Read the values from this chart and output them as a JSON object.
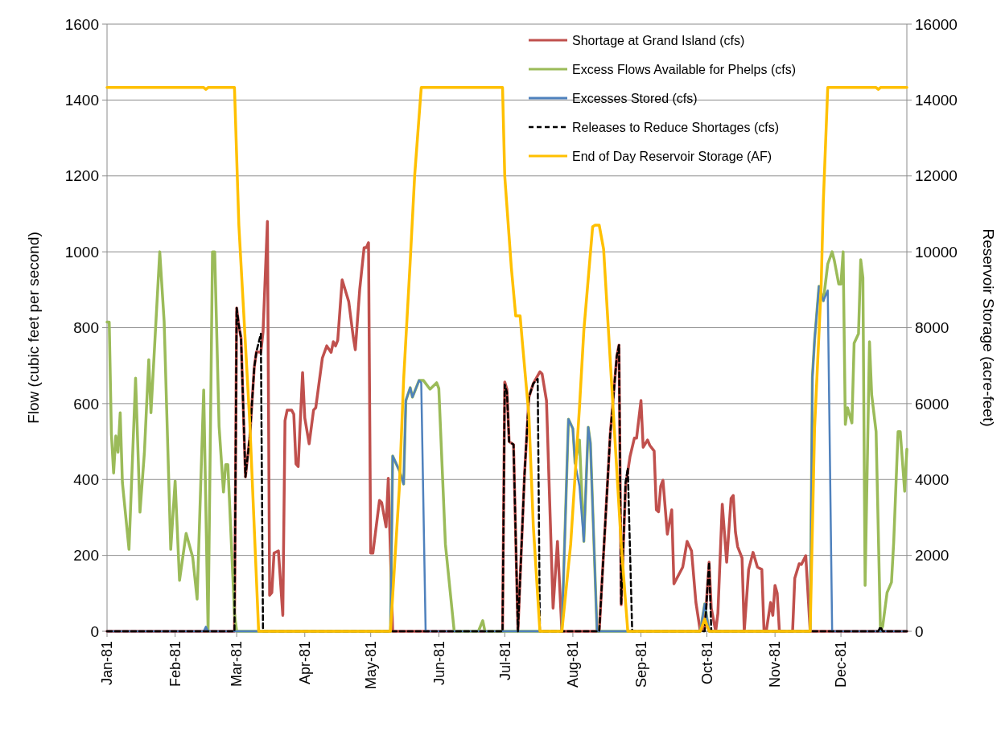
{
  "chart_data": {
    "type": "line",
    "ylabel": "Flow (cubic feet per second)",
    "y2label": "Reservoir Storage (acre-feet)",
    "xlim": [
      "1981-01-01",
      "1981-12-31"
    ],
    "xticks": [
      {
        "value": "1981-01-01",
        "label": "Jan-81"
      },
      {
        "value": "1981-02-01",
        "label": "Feb-81"
      },
      {
        "value": "1981-03-01",
        "label": "Mar-81"
      },
      {
        "value": "1981-04-01",
        "label": "Apr-81"
      },
      {
        "value": "1981-05-01",
        "label": "May-81"
      },
      {
        "value": "1981-06-01",
        "label": "Jun-81"
      },
      {
        "value": "1981-07-01",
        "label": "Jul-81"
      },
      {
        "value": "1981-08-01",
        "label": "Aug-81"
      },
      {
        "value": "1981-09-01",
        "label": "Sep-81"
      },
      {
        "value": "1981-10-01",
        "label": "Oct-81"
      },
      {
        "value": "1981-11-01",
        "label": "Nov-81"
      },
      {
        "value": "1981-12-01",
        "label": "Dec-81"
      }
    ],
    "ylim": [
      0,
      1600
    ],
    "yticks": [
      0,
      200,
      400,
      600,
      800,
      1000,
      1200,
      1400,
      1600
    ],
    "y2lim": [
      0,
      16000
    ],
    "y2ticks": [
      0,
      2000,
      4000,
      6000,
      8000,
      10000,
      12000,
      14000,
      16000
    ],
    "grid": "y",
    "legend": "top right",
    "series": [
      {
        "name": "Shortage at Grand Island (cfs)",
        "color": "#c0504d",
        "x": [
          "1981-01-01",
          "1981-02-28",
          "1981-03-01",
          "1981-03-02",
          "1981-03-03",
          "1981-03-05",
          "1981-03-07",
          "1981-03-09",
          "1981-03-10",
          "1981-03-12",
          "1981-03-13",
          "1981-03-15",
          "1981-03-16",
          "1981-03-17",
          "1981-03-18",
          "1981-03-20",
          "1981-03-22",
          "1981-03-23",
          "1981-03-24",
          "1981-03-26",
          "1981-03-27",
          "1981-03-28",
          "1981-03-29",
          "1981-03-31",
          "1981-04-01",
          "1981-04-03",
          "1981-04-05",
          "1981-04-06",
          "1981-04-09",
          "1981-04-11",
          "1981-04-13",
          "1981-04-14",
          "1981-04-15",
          "1981-04-16",
          "1981-04-18",
          "1981-04-21",
          "1981-04-23",
          "1981-04-24",
          "1981-04-26",
          "1981-04-28",
          "1981-04-29",
          "1981-04-30",
          "1981-05-01",
          "1981-05-02",
          "1981-05-05",
          "1981-05-06",
          "1981-05-08",
          "1981-05-09",
          "1981-05-11",
          "1981-06-30",
          "1981-07-01",
          "1981-07-02",
          "1981-07-03",
          "1981-07-05",
          "1981-07-07",
          "1981-07-10",
          "1981-07-12",
          "1981-07-14",
          "1981-07-17",
          "1981-07-18",
          "1981-07-20",
          "1981-07-21",
          "1981-07-23",
          "1981-07-25",
          "1981-07-27",
          "1981-08-13",
          "1981-08-18",
          "1981-08-21",
          "1981-08-22",
          "1981-08-23",
          "1981-08-25",
          "1981-08-27",
          "1981-08-29",
          "1981-08-30",
          "1981-09-01",
          "1981-09-02",
          "1981-09-04",
          "1981-09-05",
          "1981-09-07",
          "1981-09-08",
          "1981-09-09",
          "1981-09-10",
          "1981-09-11",
          "1981-09-13",
          "1981-09-15",
          "1981-09-16",
          "1981-09-20",
          "1981-09-22",
          "1981-09-24",
          "1981-09-26",
          "1981-09-28",
          "1981-09-30",
          "1981-10-02",
          "1981-10-03",
          "1981-10-05",
          "1981-10-06",
          "1981-10-08",
          "1981-10-10",
          "1981-10-12",
          "1981-10-13",
          "1981-10-14",
          "1981-10-15",
          "1981-10-17",
          "1981-10-18",
          "1981-10-20",
          "1981-10-22",
          "1981-10-24",
          "1981-10-26",
          "1981-10-27",
          "1981-10-28",
          "1981-10-30",
          "1981-10-31",
          "1981-11-01",
          "1981-11-02",
          "1981-11-03",
          "1981-11-09",
          "1981-11-10",
          "1981-11-12",
          "1981-11-13",
          "1981-11-15",
          "1981-11-17",
          "1981-12-31"
        ],
        "values": [
          0,
          0,
          852,
          805,
          773,
          407,
          513,
          695,
          737,
          735,
          788,
          1080,
          95,
          102,
          206,
          212,
          42,
          555,
          583,
          583,
          572,
          441,
          434,
          682,
          562,
          494,
          583,
          589,
          720,
          752,
          735,
          763,
          752,
          767,
          926,
          869,
          778,
          742,
          901,
          1011,
          1011,
          1024,
          206,
          206,
          345,
          339,
          275,
          403,
          0,
          0,
          657,
          638,
          500,
          492,
          0,
          413,
          617,
          653,
          684,
          678,
          608,
          424,
          61,
          237,
          0,
          0,
          519,
          725,
          754,
          70,
          383,
          460,
          509,
          509,
          608,
          485,
          504,
          490,
          475,
          320,
          315,
          383,
          398,
          256,
          320,
          125,
          169,
          237,
          212,
          76,
          0,
          10,
          182,
          61,
          0,
          47,
          335,
          182,
          350,
          358,
          261,
          223,
          193,
          0,
          163,
          208,
          169,
          163,
          0,
          0,
          76,
          42,
          121,
          100,
          0,
          0,
          140,
          178,
          176,
          199,
          0,
          0
        ]
      },
      {
        "name": "Excess Flows  Available for Phelps (cfs)",
        "color": "#9bbb59",
        "x": [
          "1981-01-01",
          "1981-01-02",
          "1981-01-03",
          "1981-01-04",
          "1981-01-05",
          "1981-01-06",
          "1981-01-07",
          "1981-01-08",
          "1981-01-11",
          "1981-01-14",
          "1981-01-16",
          "1981-01-18",
          "1981-01-20",
          "1981-01-21",
          "1981-01-25",
          "1981-01-27",
          "1981-01-30",
          "1981-02-01",
          "1981-02-03",
          "1981-02-06",
          "1981-02-09",
          "1981-02-11",
          "1981-02-14",
          "1981-02-16",
          "1981-02-18",
          "1981-02-19",
          "1981-02-21",
          "1981-02-23",
          "1981-02-24",
          "1981-02-25",
          "1981-02-28",
          "1981-03-01",
          "1981-05-10",
          "1981-05-11",
          "1981-05-14",
          "1981-05-16",
          "1981-05-17",
          "1981-05-19",
          "1981-05-20",
          "1981-05-23",
          "1981-05-25",
          "1981-05-28",
          "1981-05-31",
          "1981-06-01",
          "1981-06-04",
          "1981-06-08",
          "1981-06-19",
          "1981-06-21",
          "1981-06-22",
          "1981-07-27",
          "1981-07-30",
          "1981-08-01",
          "1981-08-02",
          "1981-08-04",
          "1981-08-06",
          "1981-08-08",
          "1981-08-09",
          "1981-08-12",
          "1981-09-28",
          "1981-09-30",
          "1981-10-02",
          "1981-11-17",
          "1981-11-18",
          "1981-11-19",
          "1981-11-21",
          "1981-11-23",
          "1981-11-25",
          "1981-11-27",
          "1981-11-28",
          "1981-11-30",
          "1981-12-01",
          "1981-12-02",
          "1981-12-03",
          "1981-12-04",
          "1981-12-06",
          "1981-12-07",
          "1981-12-09",
          "1981-12-10",
          "1981-12-11",
          "1981-12-12",
          "1981-12-14",
          "1981-12-15",
          "1981-12-17",
          "1981-12-19",
          "1981-12-20",
          "1981-12-22",
          "1981-12-24",
          "1981-12-25",
          "1981-12-27",
          "1981-12-28",
          "1981-12-30",
          "1981-12-31"
        ],
        "values": [
          815,
          815,
          519,
          417,
          515,
          472,
          576,
          392,
          216,
          667,
          314,
          470,
          716,
          576,
          1000,
          816,
          216,
          396,
          134,
          258,
          195,
          85,
          636,
          0,
          1000,
          1000,
          540,
          367,
          439,
          439,
          47,
          0,
          0,
          462,
          424,
          388,
          608,
          642,
          617,
          661,
          661,
          638,
          655,
          640,
          229,
          0,
          0,
          28,
          0,
          0,
          559,
          534,
          443,
          504,
          237,
          538,
          496,
          0,
          0,
          72,
          0,
          0,
          670,
          767,
          909,
          871,
          968,
          1000,
          977,
          915,
          915,
          1000,
          545,
          589,
          549,
          759,
          784,
          979,
          932,
          121,
          763,
          623,
          526,
          0,
          13,
          102,
          129,
          233,
          526,
          526,
          369,
          480
        ]
      },
      {
        "name": "Excesses Stored (cfs)",
        "color": "#4f81bd",
        "x": [
          "1981-01-01",
          "1981-02-14",
          "1981-02-15",
          "1981-02-16",
          "1981-05-10",
          "1981-05-11",
          "1981-05-14",
          "1981-05-16",
          "1981-05-17",
          "1981-05-19",
          "1981-05-20",
          "1981-05-23",
          "1981-05-24",
          "1981-05-26",
          "1981-07-27",
          "1981-07-30",
          "1981-08-01",
          "1981-08-02",
          "1981-08-04",
          "1981-08-06",
          "1981-08-08",
          "1981-08-09",
          "1981-08-12",
          "1981-09-28",
          "1981-09-30",
          "1981-10-02",
          "1981-11-17",
          "1981-11-18",
          "1981-11-19",
          "1981-11-21",
          "1981-11-23",
          "1981-11-25",
          "1981-11-27",
          "1981-12-31"
        ],
        "values": [
          0,
          0,
          12,
          0,
          0,
          462,
          424,
          388,
          608,
          642,
          617,
          661,
          655,
          0,
          0,
          559,
          534,
          443,
          383,
          237,
          538,
          496,
          0,
          0,
          72,
          0,
          0,
          670,
          767,
          909,
          871,
          898,
          0,
          0
        ]
      },
      {
        "name": "Releases to Reduce Shortages (cfs)",
        "color": "#000000",
        "line_style": "dashed",
        "x": [
          "1981-01-01",
          "1981-02-28",
          "1981-03-01",
          "1981-03-02",
          "1981-03-03",
          "1981-03-05",
          "1981-03-07",
          "1981-03-09",
          "1981-03-10",
          "1981-03-12",
          "1981-03-13",
          "1981-06-30",
          "1981-07-01",
          "1981-07-02",
          "1981-07-03",
          "1981-07-05",
          "1981-07-07",
          "1981-07-10",
          "1981-07-12",
          "1981-07-14",
          "1981-07-16",
          "1981-07-17",
          "1981-08-13",
          "1981-08-18",
          "1981-08-21",
          "1981-08-22",
          "1981-08-23",
          "1981-08-25",
          "1981-08-26",
          "1981-08-28",
          "1981-09-30",
          "1981-10-02",
          "1981-10-03",
          "1981-12-18",
          "1981-12-19",
          "1981-12-20",
          "1981-12-31"
        ],
        "values": [
          0,
          0,
          852,
          805,
          773,
          407,
          513,
          695,
          737,
          784,
          0,
          0,
          650,
          630,
          500,
          492,
          0,
          413,
          617,
          653,
          665,
          0,
          0,
          519,
          725,
          754,
          70,
          392,
          430,
          0,
          0,
          182,
          0,
          0,
          12,
          0,
          0
        ]
      },
      {
        "name": "End of Day Reservoir Storage (AF)",
        "color": "#ffc000",
        "axis": "y2",
        "x": [
          "1981-01-01",
          "1981-02-14",
          "1981-02-15",
          "1981-02-16",
          "1981-02-28",
          "1981-03-02",
          "1981-03-07",
          "1981-03-11",
          "1981-05-10",
          "1981-05-14",
          "1981-05-16",
          "1981-05-19",
          "1981-05-21",
          "1981-05-24",
          "1981-06-30",
          "1981-07-01",
          "1981-07-04",
          "1981-07-06",
          "1981-07-08",
          "1981-07-09",
          "1981-07-12",
          "1981-07-14",
          "1981-07-17",
          "1981-07-27",
          "1981-07-31",
          "1981-08-04",
          "1981-08-06",
          "1981-08-10",
          "1981-08-11",
          "1981-08-13",
          "1981-08-15",
          "1981-08-17",
          "1981-08-21",
          "1981-08-23",
          "1981-08-26",
          "1981-09-28",
          "1981-09-30",
          "1981-10-02",
          "1981-11-17",
          "1981-11-19",
          "1981-11-22",
          "1981-11-23",
          "1981-11-25",
          "1981-12-17",
          "1981-12-18",
          "1981-12-19",
          "1981-12-31"
        ],
        "values": [
          14330,
          14330,
          14280,
          14330,
          14330,
          10700,
          5470,
          0,
          0,
          3750,
          6650,
          9770,
          12000,
          14330,
          14330,
          12000,
          9580,
          8310,
          8310,
          7630,
          5680,
          2780,
          0,
          0,
          2290,
          5890,
          7930,
          10660,
          10700,
          10700,
          10070,
          8120,
          4240,
          2290,
          0,
          0,
          320,
          0,
          0,
          5340,
          9090,
          11340,
          14330,
          14330,
          14280,
          14330,
          14330
        ]
      }
    ]
  }
}
